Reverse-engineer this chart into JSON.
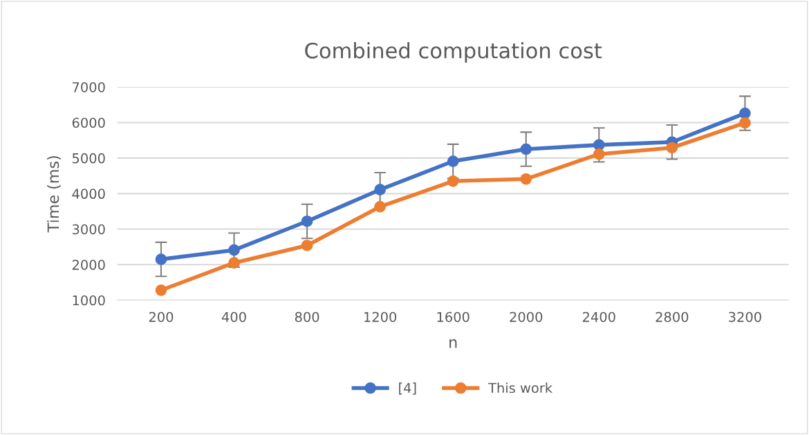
{
  "chart_data": {
    "type": "line",
    "title": "Combined computation cost",
    "xlabel": "n",
    "ylabel": "Time (ms)",
    "categories": [
      "200",
      "400",
      "800",
      "1200",
      "1600",
      "2000",
      "2400",
      "2800",
      "3200"
    ],
    "series": [
      {
        "name": "[4]",
        "color": "#4472c4",
        "values": [
          2150,
          2410,
          3220,
          4110,
          4910,
          5250,
          5370,
          5450,
          6260
        ],
        "errors": [
          480,
          480,
          480,
          480,
          480,
          480,
          480,
          480,
          480
        ]
      },
      {
        "name": "This work",
        "color": "#ed7d31",
        "values": [
          1280,
          2050,
          2540,
          3630,
          4350,
          4410,
          5110,
          5290,
          5990
        ]
      }
    ],
    "ylim": [
      1000,
      7000
    ],
    "yticks": [
      1000,
      2000,
      3000,
      4000,
      5000,
      6000,
      7000
    ],
    "grid": "y",
    "legend": "bottom",
    "marker": "circle",
    "line_style": "solid"
  }
}
